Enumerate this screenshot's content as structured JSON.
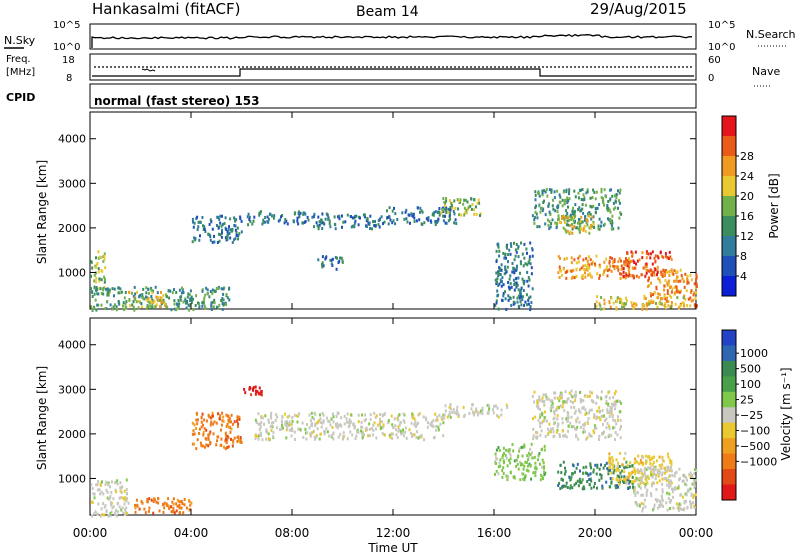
{
  "header": {
    "station": "Hankasalmi (fitACF)",
    "beam": "Beam 14",
    "date": "29/Aug/2015"
  },
  "noise_panel": {
    "left_label": "N.Sky",
    "left_ticks": [
      "10^5",
      "10^0"
    ],
    "right_label": "N.Search",
    "right_ticks": [
      "10^5",
      "10^0"
    ]
  },
  "freq_panel": {
    "label_line1": "Freq.",
    "label_line2": "[MHz]",
    "left_ticks": [
      "18",
      "8"
    ],
    "right_label": "Nave",
    "right_ticks": [
      "60",
      "0"
    ]
  },
  "cpid_panel": {
    "label": "CPID",
    "text": "normal (fast stereo) 153"
  },
  "axes": {
    "ylabel": "Slant Range [km]",
    "xlabel": "Time UT",
    "yticks": [
      "1000",
      "2000",
      "3000",
      "4000"
    ],
    "xticks": [
      "00:00",
      "04:00",
      "08:00",
      "12:00",
      "16:00",
      "20:00",
      "00:00"
    ]
  },
  "power_colorbar": {
    "title": "Power [dB]",
    "ticks": [
      "4",
      "8",
      "12",
      "16",
      "20",
      "24",
      "28"
    ],
    "colors": [
      "#0a1fd6",
      "#1f4fb8",
      "#2f7c9c",
      "#3b8d5e",
      "#72b04a",
      "#e9c830",
      "#f09a22",
      "#ea5a19",
      "#e4151b"
    ]
  },
  "velocity_colorbar": {
    "title": "Velocity [m s⁻¹]",
    "ticks": [
      "1000",
      "500",
      "100",
      "25",
      "−25",
      "−100",
      "−500",
      "−1000"
    ],
    "colors": [
      "#2243c6",
      "#2e66b2",
      "#3a8a52",
      "#4aa04a",
      "#7fc84a",
      "#c8c8c0",
      "#e9c830",
      "#f0a020",
      "#ef7a18",
      "#e24a17",
      "#e01818"
    ]
  },
  "chart_data": {
    "type": "heatmap",
    "x_range_hours": [
      0,
      24
    ],
    "y_range_km": [
      180,
      4600
    ],
    "panels": [
      {
        "name": "Power",
        "regions": [
          {
            "t": [
              0.0,
              0.6
            ],
            "r": [
              600,
              1500
            ],
            "level": 4
          },
          {
            "t": [
              0.0,
              5.5
            ],
            "r": [
              180,
              700
            ],
            "level": 3
          },
          {
            "t": [
              1.5,
              3.0
            ],
            "r": [
              250,
              600
            ],
            "level": 5
          },
          {
            "t": [
              4.0,
              6.0
            ],
            "r": [
              1700,
              2300
            ],
            "level": 2
          },
          {
            "t": [
              6.2,
              8.5
            ],
            "r": [
              2100,
              2400
            ],
            "level": 2
          },
          {
            "t": [
              8.5,
              11.5
            ],
            "r": [
              2000,
              2350
            ],
            "level": 2
          },
          {
            "t": [
              11.5,
              14.5
            ],
            "r": [
              2100,
              2500
            ],
            "level": 2
          },
          {
            "t": [
              13.8,
              15.5
            ],
            "r": [
              2300,
              2700
            ],
            "level": 4
          },
          {
            "t": [
              9.0,
              10.0
            ],
            "r": [
              1100,
              1400
            ],
            "level": 2
          },
          {
            "t": [
              16.0,
              17.5
            ],
            "r": [
              200,
              1700
            ],
            "level": 2
          },
          {
            "t": [
              17.5,
              21.0
            ],
            "r": [
              2000,
              2900
            ],
            "level": 3
          },
          {
            "t": [
              18.5,
              20.0
            ],
            "r": [
              1900,
              2300
            ],
            "level": 5
          },
          {
            "t": [
              18.5,
              21.5
            ],
            "r": [
              900,
              1400
            ],
            "level": 6
          },
          {
            "t": [
              21.0,
              23.0
            ],
            "r": [
              900,
              1500
            ],
            "level": 7
          },
          {
            "t": [
              22.0,
              24.0
            ],
            "r": [
              250,
              1100
            ],
            "level": 6
          },
          {
            "t": [
              20.0,
              23.5
            ],
            "r": [
              200,
              500
            ],
            "level": 5
          }
        ]
      },
      {
        "name": "Velocity",
        "regions": [
          {
            "t": [
              0.0,
              1.5
            ],
            "r": [
              180,
              1000
            ],
            "level": "-25..25"
          },
          {
            "t": [
              1.5,
              4.0
            ],
            "r": [
              250,
              600
            ],
            "level": "-500..-100"
          },
          {
            "t": [
              4.0,
              6.0
            ],
            "r": [
              1700,
              2500
            ],
            "level": "-500..-100"
          },
          {
            "t": [
              6.0,
              6.8
            ],
            "r": [
              2900,
              3100
            ],
            "level": "-1000..-500"
          },
          {
            "t": [
              6.5,
              14.0
            ],
            "r": [
              1900,
              2500
            ],
            "level": "-25..25"
          },
          {
            "t": [
              14.0,
              16.5
            ],
            "r": [
              2400,
              2700
            ],
            "level": "-25..25"
          },
          {
            "t": [
              16.0,
              18.0
            ],
            "r": [
              1000,
              1800
            ],
            "level": "25..100"
          },
          {
            "t": [
              17.5,
              21.0
            ],
            "r": [
              1900,
              3000
            ],
            "level": "-25..25"
          },
          {
            "t": [
              18.5,
              21.5
            ],
            "r": [
              800,
              1400
            ],
            "level": "100..500"
          },
          {
            "t": [
              20.5,
              23.0
            ],
            "r": [
              900,
              1600
            ],
            "level": "-100..-25"
          },
          {
            "t": [
              21.5,
              24.0
            ],
            "r": [
              300,
              1300
            ],
            "level": "-25..25"
          }
        ]
      }
    ]
  }
}
